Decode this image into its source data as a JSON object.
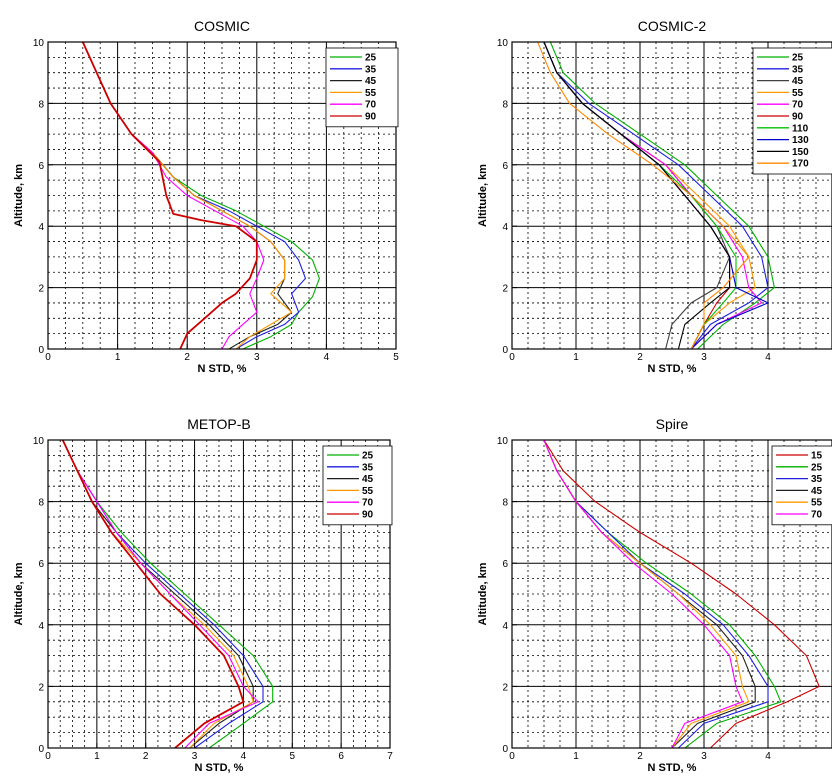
{
  "chart_data": [
    {
      "type": "line",
      "title": "COSMIC",
      "xlabel": "N STD, %",
      "ylabel": "Altitude, km",
      "xlim": [
        0,
        5
      ],
      "ylim": [
        0,
        10
      ],
      "xticks": [
        "0",
        "1",
        "2",
        "3",
        "4",
        "5"
      ],
      "yticks": [
        "0",
        "2",
        "4",
        "6",
        "8",
        "10"
      ],
      "grid": true,
      "legend_position": "top-right",
      "series": [
        {
          "name": "25",
          "color": "#00b000",
          "x": [
            0.5,
            0.7,
            0.9,
            1.2,
            1.5,
            1.8,
            2.2,
            2.7,
            3.1,
            3.5,
            3.8,
            3.9,
            3.8,
            3.6,
            3.5,
            3.2,
            2.8
          ],
          "y": [
            10,
            9,
            8,
            7,
            6.4,
            5.6,
            5,
            4.5,
            4,
            3.5,
            2.9,
            2.3,
            1.7,
            1.2,
            0.8,
            0.4,
            0
          ]
        },
        {
          "name": "35",
          "color": "#2020e0",
          "x": [
            0.5,
            0.7,
            0.9,
            1.2,
            1.5,
            1.8,
            2.1,
            2.6,
            3.0,
            3.4,
            3.6,
            3.7,
            3.5,
            3.6,
            3.4,
            3.0,
            2.7
          ],
          "y": [
            10,
            9,
            8,
            7,
            6.4,
            5.6,
            5,
            4.5,
            4,
            3.5,
            2.9,
            2.3,
            1.8,
            1.2,
            0.8,
            0.4,
            0
          ]
        },
        {
          "name": "45",
          "color": "#202020",
          "x": [
            0.5,
            0.7,
            0.9,
            1.2,
            1.5,
            1.8,
            2.1,
            2.5,
            2.9,
            3.2,
            3.4,
            3.4,
            3.3,
            3.5,
            3.3,
            2.9,
            2.6
          ],
          "y": [
            10,
            9,
            8,
            7,
            6.4,
            5.6,
            5,
            4.5,
            4,
            3.5,
            2.9,
            2.3,
            1.8,
            1.2,
            0.8,
            0.4,
            0
          ]
        },
        {
          "name": "55",
          "color": "#ff9900",
          "x": [
            0.5,
            0.7,
            0.9,
            1.2,
            1.5,
            1.8,
            2.1,
            2.5,
            2.9,
            3.2,
            3.4,
            3.4,
            3.2,
            3.5,
            3.2,
            2.9,
            2.7
          ],
          "y": [
            10,
            9,
            8,
            7,
            6.4,
            5.6,
            5,
            4.5,
            4,
            3.5,
            2.9,
            2.3,
            1.8,
            1.2,
            0.8,
            0.4,
            0
          ]
        },
        {
          "name": "70",
          "color": "#ff00ff",
          "x": [
            0.5,
            0.7,
            0.9,
            1.2,
            1.5,
            1.7,
            2.0,
            2.4,
            2.8,
            3.0,
            3.1,
            3.0,
            2.9,
            3.0,
            2.8,
            2.6,
            2.5
          ],
          "y": [
            10,
            9,
            8,
            7,
            6.4,
            5.6,
            5,
            4.5,
            4,
            3.5,
            2.9,
            2.3,
            1.8,
            1.2,
            0.8,
            0.4,
            0
          ]
        },
        {
          "name": "90",
          "color": "#cc0000",
          "x": [
            0.5,
            0.7,
            0.9,
            1.2,
            1.6,
            1.7,
            1.8,
            2.2,
            2.7,
            3.0,
            3.0,
            2.9,
            2.7,
            2.5,
            2.2,
            2.0,
            1.9
          ],
          "y": [
            10,
            9,
            8,
            7,
            6.1,
            5.0,
            4.4,
            4.2,
            4,
            3.5,
            2.9,
            2.3,
            1.8,
            1.5,
            0.9,
            0.5,
            0
          ]
        }
      ]
    },
    {
      "type": "line",
      "title": "COSMIC-2",
      "xlabel": "N STD, %",
      "ylabel": "Altitude, km",
      "xlim": [
        0,
        5
      ],
      "ylim": [
        0,
        10
      ],
      "xticks": [
        "0",
        "1",
        "2",
        "3",
        "4"
      ],
      "yticks": [
        "0",
        "2",
        "4",
        "6",
        "8",
        "10"
      ],
      "grid": true,
      "legend_position": "top-right",
      "series": [
        {
          "name": "25",
          "color": "#00b000",
          "x": [
            0.6,
            0.8,
            1.3,
            2.0,
            2.7,
            3.2,
            3.7,
            4.0,
            4.1,
            3.8,
            3.3,
            2.9
          ],
          "y": [
            10,
            9,
            8,
            7,
            6,
            5,
            4,
            3,
            2,
            1.5,
            0.8,
            0
          ]
        },
        {
          "name": "35",
          "color": "#2020e0",
          "x": [
            0.5,
            0.7,
            1.2,
            1.9,
            2.6,
            3.1,
            3.6,
            3.9,
            4.0,
            3.7,
            3.1,
            2.8
          ],
          "y": [
            10,
            9,
            8,
            7,
            6,
            5,
            4,
            3,
            2,
            1.5,
            0.8,
            0
          ]
        },
        {
          "name": "45",
          "color": "#404040",
          "x": [
            0.5,
            0.7,
            1.1,
            1.7,
            2.4,
            2.8,
            3.2,
            3.4,
            3.2,
            2.8,
            2.5,
            2.4
          ],
          "y": [
            10,
            9,
            8,
            7,
            6,
            5,
            4,
            3,
            2,
            1.5,
            0.8,
            0
          ]
        },
        {
          "name": "55",
          "color": "#ff9900",
          "x": [
            0.5,
            0.7,
            1.1,
            1.7,
            2.4,
            2.9,
            3.4,
            3.7,
            3.8,
            3.4,
            3.0,
            2.8
          ],
          "y": [
            10,
            9,
            8,
            7,
            6,
            5,
            4,
            3,
            2,
            1.5,
            0.8,
            0
          ]
        },
        {
          "name": "70",
          "color": "#ff00ff",
          "x": [
            0.5,
            0.7,
            1.1,
            1.7,
            2.4,
            2.8,
            3.3,
            3.6,
            3.7,
            3.9,
            3.2,
            2.8
          ],
          "y": [
            10,
            9,
            8,
            7,
            6,
            5,
            4,
            3,
            2,
            1.5,
            0.8,
            0
          ]
        },
        {
          "name": "90",
          "color": "#cc0000",
          "x": [
            0.5,
            0.7,
            1.1,
            1.7,
            2.3,
            2.7,
            3.1,
            3.4,
            3.4,
            3.2,
            3.0,
            2.8
          ],
          "y": [
            10,
            9,
            8,
            7,
            6,
            5,
            4,
            3,
            2,
            1.5,
            0.8,
            0
          ]
        },
        {
          "name": "110",
          "color": "#00c000",
          "x": [
            0.5,
            0.7,
            1.1,
            1.7,
            2.3,
            2.8,
            3.2,
            3.5,
            3.5,
            3.3,
            3.0,
            2.8
          ],
          "y": [
            10,
            9,
            8,
            7,
            6,
            5,
            4,
            3,
            2,
            1.5,
            0.8,
            0
          ]
        },
        {
          "name": "130",
          "color": "#0000cc",
          "x": [
            0.5,
            0.7,
            1.1,
            1.7,
            2.3,
            2.7,
            3.1,
            3.4,
            3.5,
            4.0,
            3.2,
            2.8
          ],
          "y": [
            10,
            9,
            8,
            7,
            6,
            5,
            4,
            3,
            2,
            1.5,
            0.8,
            0
          ]
        },
        {
          "name": "150",
          "color": "#000000",
          "x": [
            0.5,
            0.7,
            1.1,
            1.7,
            2.3,
            2.7,
            3.1,
            3.4,
            3.4,
            3.1,
            2.7,
            2.6
          ],
          "y": [
            10,
            9,
            8,
            7,
            6,
            5,
            4,
            3,
            2,
            1.5,
            0.8,
            0
          ]
        },
        {
          "name": "170",
          "color": "#ff8800",
          "x": [
            0.4,
            0.6,
            0.9,
            1.5,
            2.2,
            2.8,
            3.3,
            3.7,
            3.3,
            3.0,
            3.0,
            2.8
          ],
          "y": [
            10,
            9,
            8,
            7,
            6,
            5,
            4,
            3,
            2,
            1.5,
            0.8,
            0
          ]
        }
      ]
    },
    {
      "type": "line",
      "title": "METOP-B",
      "xlabel": "N STD, %",
      "ylabel": "Altitude, km",
      "xlim": [
        0,
        7
      ],
      "ylim": [
        0,
        10
      ],
      "xticks": [
        "0",
        "1",
        "2",
        "3",
        "4",
        "5",
        "6",
        "7"
      ],
      "yticks": [
        "0",
        "2",
        "4",
        "6",
        "8",
        "10"
      ],
      "grid": true,
      "legend_position": "top-right",
      "series": [
        {
          "name": "25",
          "color": "#00b000",
          "x": [
            0.3,
            0.6,
            1.0,
            1.5,
            2.1,
            2.8,
            3.5,
            4.2,
            4.6,
            4.6,
            4.0,
            3.3
          ],
          "y": [
            10,
            9,
            8,
            7,
            6,
            5,
            4,
            3,
            2,
            1.5,
            0.8,
            0
          ]
        },
        {
          "name": "35",
          "color": "#2020e0",
          "x": [
            0.3,
            0.6,
            1.0,
            1.4,
            2.0,
            2.7,
            3.4,
            4.0,
            4.4,
            4.4,
            3.7,
            3.0
          ],
          "y": [
            10,
            9,
            8,
            7,
            6,
            5,
            4,
            3,
            2,
            1.5,
            0.8,
            0
          ]
        },
        {
          "name": "45",
          "color": "#202020",
          "x": [
            0.3,
            0.6,
            0.9,
            1.4,
            1.9,
            2.6,
            3.3,
            3.9,
            4.2,
            4.2,
            3.5,
            2.9
          ],
          "y": [
            10,
            9,
            8,
            7,
            6,
            5,
            4,
            3,
            2,
            1.5,
            0.8,
            0
          ]
        },
        {
          "name": "55",
          "color": "#ff9900",
          "x": [
            0.3,
            0.6,
            0.9,
            1.3,
            1.9,
            2.5,
            3.2,
            3.8,
            4.1,
            4.2,
            3.4,
            2.9
          ],
          "y": [
            10,
            9,
            8,
            7,
            6,
            5,
            4,
            3,
            2,
            1.5,
            0.8,
            0
          ]
        },
        {
          "name": "70",
          "color": "#ff00ff",
          "x": [
            0.3,
            0.6,
            1.0,
            1.4,
            1.9,
            2.5,
            3.1,
            3.7,
            4.0,
            4.3,
            3.3,
            2.8
          ],
          "y": [
            10,
            9,
            8,
            7,
            6,
            5,
            4,
            3,
            2,
            1.5,
            0.8,
            0
          ]
        },
        {
          "name": "90",
          "color": "#cc0000",
          "x": [
            0.3,
            0.6,
            0.9,
            1.3,
            1.8,
            2.3,
            3.0,
            3.6,
            3.9,
            4.0,
            3.2,
            2.6
          ],
          "y": [
            10,
            9,
            8,
            7,
            6,
            5,
            4,
            3,
            2,
            1.5,
            0.8,
            0
          ]
        }
      ]
    },
    {
      "type": "line",
      "title": "Spire",
      "xlabel": "N STD, %",
      "ylabel": "Altitude, km",
      "xlim": [
        0,
        5
      ],
      "ylim": [
        0,
        10
      ],
      "xticks": [
        "0",
        "1",
        "2",
        "3",
        "4"
      ],
      "yticks": [
        "0",
        "2",
        "4",
        "6",
        "8",
        "10"
      ],
      "grid": true,
      "legend_position": "top-right",
      "series": [
        {
          "name": "15",
          "color": "#cc0000",
          "x": [
            0.5,
            0.8,
            1.3,
            2.0,
            2.8,
            3.5,
            4.1,
            4.6,
            4.8,
            4.3,
            3.5,
            3.1
          ],
          "y": [
            10,
            9,
            8,
            7,
            6,
            5,
            4,
            3,
            2,
            1.5,
            0.8,
            0
          ]
        },
        {
          "name": "25",
          "color": "#00b000",
          "x": [
            0.5,
            0.7,
            1.0,
            1.5,
            2.1,
            2.8,
            3.4,
            3.8,
            4.1,
            4.2,
            3.2,
            2.7
          ],
          "y": [
            10,
            9,
            8,
            7,
            6,
            5,
            4,
            3,
            2,
            1.5,
            0.8,
            0
          ]
        },
        {
          "name": "35",
          "color": "#2020e0",
          "x": [
            0.5,
            0.7,
            1.0,
            1.5,
            2.0,
            2.7,
            3.3,
            3.7,
            4.0,
            4.0,
            3.0,
            2.6
          ],
          "y": [
            10,
            9,
            8,
            7,
            6,
            5,
            4,
            3,
            2,
            1.5,
            0.8,
            0
          ]
        },
        {
          "name": "45",
          "color": "#202020",
          "x": [
            0.5,
            0.7,
            1.0,
            1.4,
            2.0,
            2.6,
            3.2,
            3.6,
            3.8,
            3.8,
            2.9,
            2.5
          ],
          "y": [
            10,
            9,
            8,
            7,
            6,
            5,
            4,
            3,
            2,
            1.5,
            0.8,
            0
          ]
        },
        {
          "name": "55",
          "color": "#ff9900",
          "x": [
            0.5,
            0.7,
            1.0,
            1.4,
            2.0,
            2.6,
            3.1,
            3.5,
            3.6,
            3.7,
            2.8,
            2.5
          ],
          "y": [
            10,
            9,
            8,
            7,
            6,
            5,
            4,
            3,
            2,
            1.5,
            0.8,
            0
          ]
        },
        {
          "name": "70",
          "color": "#ff00ff",
          "x": [
            0.5,
            0.7,
            1.0,
            1.4,
            1.9,
            2.5,
            3.0,
            3.4,
            3.5,
            3.6,
            2.7,
            2.5
          ],
          "y": [
            10,
            9,
            8,
            7,
            6,
            5,
            4,
            3,
            2,
            1.5,
            0.8,
            0
          ]
        }
      ]
    }
  ]
}
